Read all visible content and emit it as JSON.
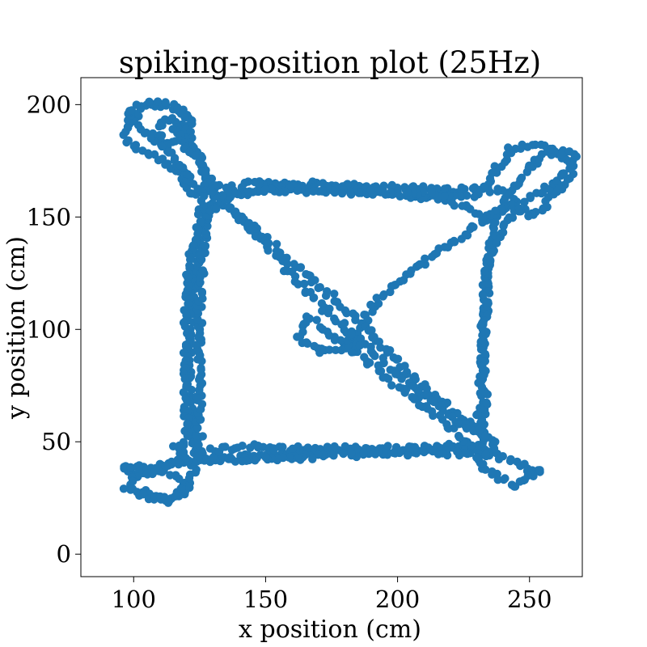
{
  "chart_data": {
    "type": "scatter",
    "title": "spiking-position plot (25Hz)",
    "xlabel": "x position (cm)",
    "ylabel": "y position (cm)",
    "xlim": [
      80,
      270
    ],
    "ylim": [
      -10,
      212
    ],
    "xticks": [
      100,
      150,
      200,
      250
    ],
    "yticks": [
      0,
      50,
      100,
      150,
      200
    ],
    "grid": false,
    "legend": "none",
    "marker_color": "#1f77b4",
    "series": [
      {
        "path_points": [
          [
            103,
            28
          ],
          [
            108,
            25
          ],
          [
            115,
            24
          ],
          [
            120,
            28
          ],
          [
            118,
            34
          ],
          [
            110,
            37
          ],
          [
            100,
            36
          ],
          [
            96,
            40
          ],
          [
            105,
            38
          ],
          [
            115,
            40
          ],
          [
            125,
            41
          ],
          [
            140,
            43
          ],
          [
            160,
            45
          ],
          [
            180,
            46
          ],
          [
            200,
            46
          ],
          [
            220,
            47
          ],
          [
            232,
            46
          ],
          [
            242,
            42
          ],
          [
            250,
            38
          ],
          [
            255,
            37
          ],
          [
            248,
            34
          ],
          [
            244,
            30
          ],
          [
            240,
            33
          ],
          [
            232,
            38
          ],
          [
            231,
            60
          ],
          [
            232,
            80
          ],
          [
            233,
            100
          ],
          [
            234,
            120
          ],
          [
            235,
            140
          ],
          [
            238,
            150
          ],
          [
            242,
            160
          ],
          [
            248,
            170
          ],
          [
            255,
            178
          ],
          [
            263,
            180
          ],
          [
            268,
            176
          ],
          [
            265,
            168
          ],
          [
            258,
            158
          ],
          [
            252,
            150
          ],
          [
            246,
            153
          ],
          [
            243,
            160
          ],
          [
            240,
            162
          ],
          [
            220,
            162
          ],
          [
            200,
            163
          ],
          [
            180,
            164
          ],
          [
            160,
            165
          ],
          [
            145,
            165
          ],
          [
            130,
            163
          ],
          [
            122,
            160
          ],
          [
            118,
            168
          ],
          [
            112,
            175
          ],
          [
            102,
            180
          ],
          [
            96,
            186
          ],
          [
            99,
            194
          ],
          [
            106,
            200
          ],
          [
            116,
            199
          ],
          [
            122,
            192
          ],
          [
            118,
            184
          ],
          [
            112,
            182
          ],
          [
            108,
            188
          ],
          [
            113,
            194
          ],
          [
            120,
            190
          ],
          [
            128,
            170
          ],
          [
            130,
            160
          ],
          [
            127,
            150
          ],
          [
            124,
            130
          ],
          [
            122,
            110
          ],
          [
            121,
            90
          ],
          [
            121,
            70
          ],
          [
            122,
            55
          ],
          [
            124,
            45
          ],
          [
            140,
            48
          ],
          [
            160,
            47
          ],
          [
            180,
            47
          ],
          [
            200,
            47
          ],
          [
            220,
            48
          ],
          [
            228,
            48
          ],
          [
            213,
            63
          ],
          [
            200,
            75
          ],
          [
            187,
            88
          ],
          [
            175,
            98
          ],
          [
            166,
            105
          ],
          [
            162,
            96
          ],
          [
            170,
            90
          ],
          [
            180,
            92
          ],
          [
            186,
            100
          ],
          [
            190,
            110
          ],
          [
            198,
            120
          ],
          [
            210,
            130
          ],
          [
            222,
            140
          ],
          [
            235,
            150
          ],
          [
            244,
            156
          ],
          [
            232,
            150
          ],
          [
            220,
            158
          ],
          [
            200,
            160
          ],
          [
            180,
            162
          ],
          [
            160,
            163
          ],
          [
            140,
            162
          ],
          [
            132,
            158
          ],
          [
            145,
            145
          ],
          [
            160,
            130
          ],
          [
            175,
            115
          ],
          [
            188,
            100
          ],
          [
            198,
            88
          ],
          [
            212,
            72
          ],
          [
            225,
            60
          ],
          [
            238,
            50
          ],
          [
            234,
            43
          ],
          [
            220,
            45
          ],
          [
            200,
            45
          ],
          [
            180,
            44
          ],
          [
            160,
            43
          ],
          [
            140,
            42
          ],
          [
            125,
            42
          ],
          [
            125,
            60
          ],
          [
            125,
            85
          ],
          [
            125,
            110
          ],
          [
            126,
            135
          ],
          [
            128,
            150
          ],
          [
            135,
            158
          ],
          [
            140,
            150
          ],
          [
            152,
            135
          ],
          [
            165,
            118
          ],
          [
            178,
            103
          ],
          [
            190,
            90
          ],
          [
            205,
            75
          ],
          [
            220,
            62
          ],
          [
            232,
            52
          ],
          [
            233,
            70
          ],
          [
            232,
            90
          ],
          [
            233,
            110
          ],
          [
            234,
            130
          ],
          [
            240,
            145
          ],
          [
            250,
            158
          ],
          [
            260,
            165
          ],
          [
            266,
            172
          ],
          [
            260,
            180
          ],
          [
            250,
            182
          ],
          [
            243,
            180
          ],
          [
            230,
            160
          ],
          [
            215,
            160
          ],
          [
            195,
            161
          ],
          [
            175,
            161
          ],
          [
            155,
            162
          ],
          [
            138,
            160
          ],
          [
            127,
            160
          ],
          [
            122,
            165
          ],
          [
            114,
            178
          ],
          [
            104,
            188
          ],
          [
            98,
            196
          ],
          [
            104,
            201
          ],
          [
            113,
            200
          ],
          [
            120,
            196
          ],
          [
            115,
            188
          ],
          [
            122,
            178
          ],
          [
            128,
            168
          ],
          [
            126,
            155
          ],
          [
            121,
            130
          ],
          [
            120,
            100
          ],
          [
            120,
            75
          ],
          [
            120,
            55
          ],
          [
            118,
            42
          ],
          [
            110,
            38
          ],
          [
            100,
            35
          ],
          [
            97,
            30
          ],
          [
            104,
            26
          ],
          [
            113,
            24
          ],
          [
            120,
            30
          ],
          [
            123,
            38
          ],
          [
            119,
            46
          ],
          [
            115,
            48
          ]
        ]
      }
    ]
  }
}
